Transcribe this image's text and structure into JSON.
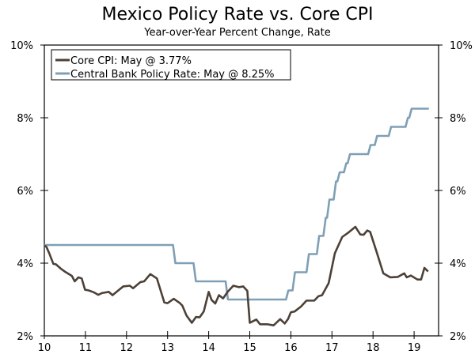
{
  "chart_data": {
    "type": "line",
    "title": "Mexico Policy Rate vs. Core CPI",
    "subtitle": "Year-over-Year Percent Change, Rate",
    "xlim": [
      2010,
      2019.6
    ],
    "ylim": [
      2,
      10
    ],
    "x_ticks": [
      "10",
      "11",
      "12",
      "13",
      "14",
      "15",
      "16",
      "17",
      "18",
      "19"
    ],
    "y_ticks_left": [
      "2%",
      "4%",
      "6%",
      "8%",
      "10%"
    ],
    "y_ticks_right": [
      "2%",
      "4%",
      "6%",
      "8%",
      "10%"
    ],
    "grid": false,
    "legend_position": "top-left",
    "colors": {
      "core_cpi": "#4d4137",
      "policy_rate": "#7f9fb5"
    },
    "series": [
      {
        "name": "Core CPI: May @ 3.77%",
        "key": "core_cpi",
        "step": false,
        "points": [
          [
            2010.0,
            4.48
          ],
          [
            2010.05,
            4.45
          ],
          [
            2010.12,
            4.27
          ],
          [
            2010.22,
            3.98
          ],
          [
            2010.28,
            3.97
          ],
          [
            2010.4,
            3.85
          ],
          [
            2010.51,
            3.76
          ],
          [
            2010.67,
            3.65
          ],
          [
            2010.74,
            3.5
          ],
          [
            2010.83,
            3.61
          ],
          [
            2010.91,
            3.58
          ],
          [
            2010.99,
            3.27
          ],
          [
            2011.08,
            3.25
          ],
          [
            2011.2,
            3.2
          ],
          [
            2011.31,
            3.13
          ],
          [
            2011.41,
            3.18
          ],
          [
            2011.57,
            3.21
          ],
          [
            2011.66,
            3.12
          ],
          [
            2011.8,
            3.25
          ],
          [
            2011.92,
            3.36
          ],
          [
            2012.08,
            3.38
          ],
          [
            2012.16,
            3.31
          ],
          [
            2012.34,
            3.48
          ],
          [
            2012.43,
            3.5
          ],
          [
            2012.58,
            3.7
          ],
          [
            2012.74,
            3.58
          ],
          [
            2012.92,
            2.92
          ],
          [
            2013.0,
            2.9
          ],
          [
            2013.15,
            3.02
          ],
          [
            2013.3,
            2.9
          ],
          [
            2013.36,
            2.83
          ],
          [
            2013.46,
            2.56
          ],
          [
            2013.59,
            2.36
          ],
          [
            2013.69,
            2.52
          ],
          [
            2013.78,
            2.51
          ],
          [
            2013.88,
            2.67
          ],
          [
            2014.0,
            3.21
          ],
          [
            2014.07,
            2.99
          ],
          [
            2014.16,
            2.89
          ],
          [
            2014.25,
            3.12
          ],
          [
            2014.35,
            3.03
          ],
          [
            2014.46,
            3.21
          ],
          [
            2014.6,
            3.38
          ],
          [
            2014.74,
            3.34
          ],
          [
            2014.84,
            3.36
          ],
          [
            2014.94,
            3.24
          ],
          [
            2015.0,
            2.36
          ],
          [
            2015.16,
            2.45
          ],
          [
            2015.25,
            2.32
          ],
          [
            2015.42,
            2.32
          ],
          [
            2015.58,
            2.29
          ],
          [
            2015.74,
            2.46
          ],
          [
            2015.85,
            2.34
          ],
          [
            2015.93,
            2.46
          ],
          [
            2016.0,
            2.65
          ],
          [
            2016.09,
            2.67
          ],
          [
            2016.25,
            2.81
          ],
          [
            2016.38,
            2.97
          ],
          [
            2016.57,
            2.97
          ],
          [
            2016.67,
            3.09
          ],
          [
            2016.76,
            3.12
          ],
          [
            2016.92,
            3.45
          ],
          [
            2017.07,
            4.27
          ],
          [
            2017.25,
            4.72
          ],
          [
            2017.41,
            4.85
          ],
          [
            2017.57,
            5.0
          ],
          [
            2017.69,
            4.79
          ],
          [
            2017.77,
            4.78
          ],
          [
            2017.86,
            4.9
          ],
          [
            2017.93,
            4.86
          ],
          [
            2018.09,
            4.3
          ],
          [
            2018.25,
            3.72
          ],
          [
            2018.42,
            3.61
          ],
          [
            2018.6,
            3.62
          ],
          [
            2018.76,
            3.72
          ],
          [
            2018.82,
            3.61
          ],
          [
            2018.92,
            3.66
          ],
          [
            2019.08,
            3.55
          ],
          [
            2019.17,
            3.55
          ],
          [
            2019.25,
            3.87
          ],
          [
            2019.34,
            3.77
          ]
        ]
      },
      {
        "name": "Central Bank Policy Rate: May @ 8.25%",
        "key": "policy_rate",
        "step": true,
        "points": [
          [
            2010.0,
            4.5
          ],
          [
            2013.17,
            4.0
          ],
          [
            2013.67,
            3.5
          ],
          [
            2014.45,
            3.0
          ],
          [
            2015.92,
            3.25
          ],
          [
            2016.08,
            3.75
          ],
          [
            2016.42,
            4.25
          ],
          [
            2016.67,
            4.75
          ],
          [
            2016.83,
            5.25
          ],
          [
            2016.92,
            5.75
          ],
          [
            2017.08,
            6.25
          ],
          [
            2017.17,
            6.5
          ],
          [
            2017.33,
            6.75
          ],
          [
            2017.42,
            7.0
          ],
          [
            2017.92,
            7.25
          ],
          [
            2018.08,
            7.5
          ],
          [
            2018.42,
            7.75
          ],
          [
            2018.83,
            8.0
          ],
          [
            2018.92,
            8.25
          ],
          [
            2019.34,
            8.25
          ]
        ]
      }
    ]
  }
}
